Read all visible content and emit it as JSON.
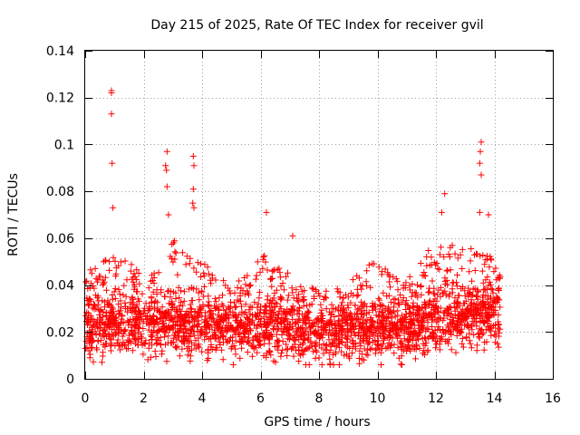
{
  "chart_data": {
    "type": "scatter",
    "title": "Day 215 of 2025, Rate Of TEC Index for receiver gvil",
    "xlabel": "GPS time / hours",
    "ylabel": "ROTI / TECUs",
    "xlim": [
      0,
      16
    ],
    "ylim": [
      0,
      0.14
    ],
    "x_ticks": [
      0,
      2,
      4,
      6,
      8,
      10,
      12,
      14,
      16
    ],
    "x_tick_labels": [
      "0",
      "2",
      "4",
      "6",
      "8",
      "10",
      "12",
      "14",
      "16"
    ],
    "y_ticks": [
      0,
      0.02,
      0.04,
      0.06,
      0.08,
      0.1,
      0.12,
      0.14
    ],
    "y_tick_labels": [
      "0",
      "0.02",
      "0.04",
      "0.06",
      "0.08",
      "0.1",
      "0.12",
      "0.14"
    ],
    "grid": true,
    "marker": "+",
    "series_color": "#ff0000",
    "data_x_range": [
      0,
      14.2
    ],
    "profile": {
      "x": [
        0,
        0.5,
        1,
        1.5,
        2,
        2.5,
        3,
        3.5,
        4,
        4.5,
        5,
        5.5,
        6,
        6.5,
        7,
        7.5,
        8,
        8.5,
        9,
        9.5,
        10,
        10.5,
        11,
        11.5,
        12,
        12.5,
        13,
        13.5,
        14,
        14.2
      ],
      "typical_roti": [
        0.021,
        0.022,
        0.023,
        0.022,
        0.022,
        0.023,
        0.023,
        0.022,
        0.022,
        0.021,
        0.02,
        0.021,
        0.022,
        0.021,
        0.02,
        0.02,
        0.019,
        0.02,
        0.02,
        0.021,
        0.021,
        0.02,
        0.021,
        0.023,
        0.025,
        0.026,
        0.027,
        0.027,
        0.026,
        0.025
      ],
      "upper_envelope": [
        0.045,
        0.05,
        0.052,
        0.05,
        0.045,
        0.045,
        0.06,
        0.052,
        0.05,
        0.045,
        0.04,
        0.045,
        0.055,
        0.05,
        0.045,
        0.04,
        0.038,
        0.038,
        0.04,
        0.048,
        0.05,
        0.045,
        0.042,
        0.05,
        0.06,
        0.058,
        0.055,
        0.058,
        0.05,
        0.045
      ]
    },
    "notable_points": [
      {
        "x": 0.9,
        "y": 0.123
      },
      {
        "x": 0.9,
        "y": 0.122
      },
      {
        "x": 0.9,
        "y": 0.113
      },
      {
        "x": 0.92,
        "y": 0.092
      },
      {
        "x": 0.95,
        "y": 0.073
      },
      {
        "x": 2.8,
        "y": 0.097
      },
      {
        "x": 2.75,
        "y": 0.091
      },
      {
        "x": 2.78,
        "y": 0.089
      },
      {
        "x": 2.8,
        "y": 0.082
      },
      {
        "x": 2.85,
        "y": 0.07
      },
      {
        "x": 3.7,
        "y": 0.095
      },
      {
        "x": 3.72,
        "y": 0.091
      },
      {
        "x": 3.7,
        "y": 0.081
      },
      {
        "x": 3.68,
        "y": 0.075
      },
      {
        "x": 3.72,
        "y": 0.073
      },
      {
        "x": 6.2,
        "y": 0.071
      },
      {
        "x": 7.1,
        "y": 0.061
      },
      {
        "x": 12.3,
        "y": 0.079
      },
      {
        "x": 12.2,
        "y": 0.071
      },
      {
        "x": 13.55,
        "y": 0.101
      },
      {
        "x": 13.52,
        "y": 0.097
      },
      {
        "x": 13.5,
        "y": 0.092
      },
      {
        "x": 13.55,
        "y": 0.087
      },
      {
        "x": 13.5,
        "y": 0.071
      },
      {
        "x": 13.8,
        "y": 0.07
      }
    ]
  }
}
